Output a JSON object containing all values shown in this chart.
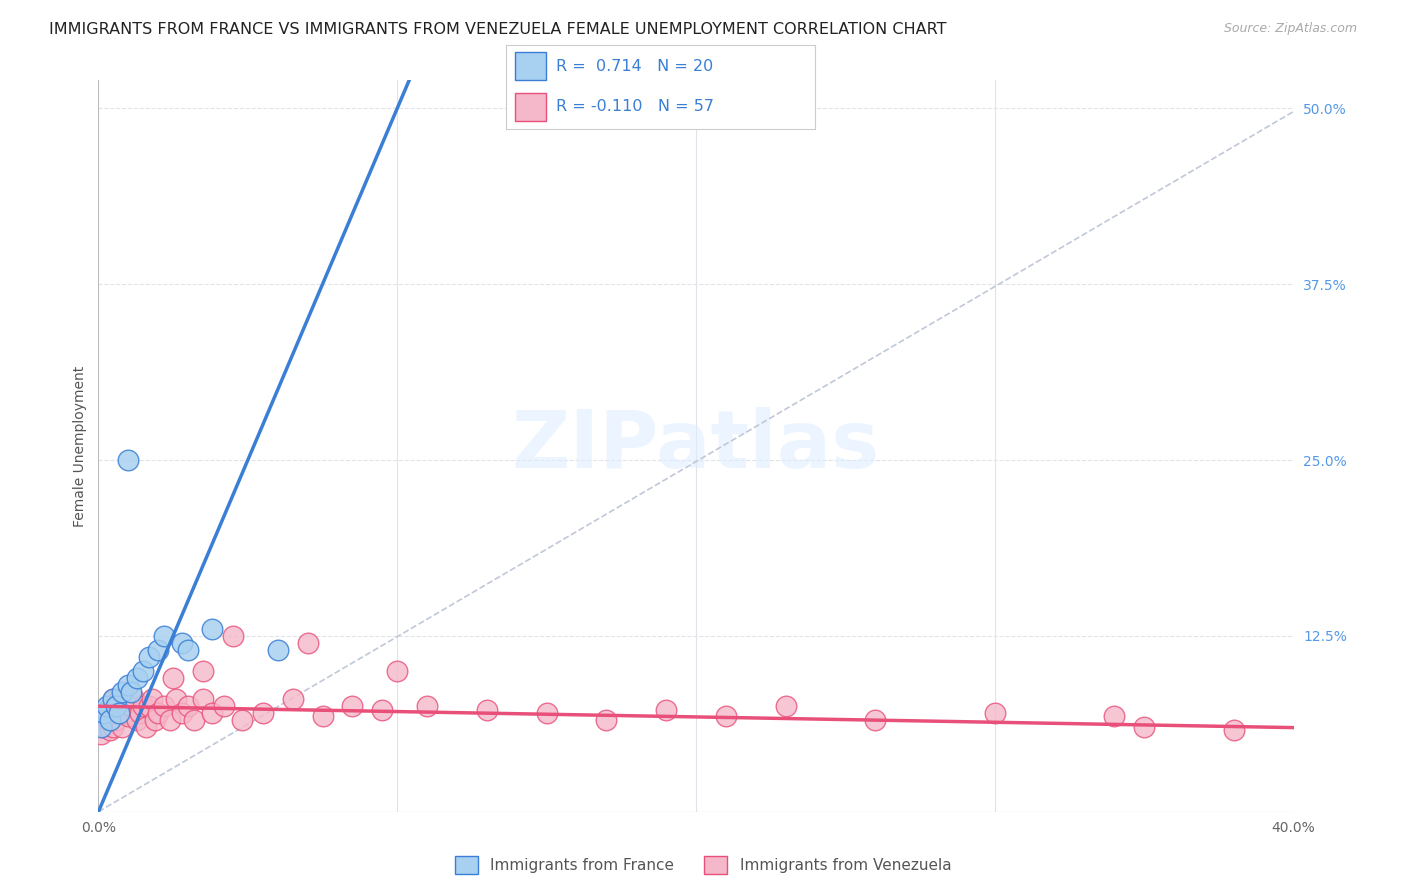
{
  "title": "IMMIGRANTS FROM FRANCE VS IMMIGRANTS FROM VENEZUELA FEMALE UNEMPLOYMENT CORRELATION CHART",
  "source": "Source: ZipAtlas.com",
  "ylabel": "Female Unemployment",
  "legend_label_france": "Immigrants from France",
  "legend_label_venezuela": "Immigrants from Venezuela",
  "r_france": 0.714,
  "n_france": 20,
  "r_venezuela": -0.11,
  "n_venezuela": 57,
  "xlim": [
    0.0,
    0.4
  ],
  "ylim": [
    0.0,
    0.52
  ],
  "xticks": [
    0.0,
    0.1,
    0.2,
    0.3,
    0.4
  ],
  "xtick_labels": [
    "0.0%",
    "",
    "",
    "",
    "40.0%"
  ],
  "ytick_right": [
    0.0,
    0.125,
    0.25,
    0.375,
    0.5
  ],
  "ytick_right_labels": [
    "",
    "12.5%",
    "25.0%",
    "37.5%",
    "50.0%"
  ],
  "color_france": "#a8d0f0",
  "color_venezuela": "#f5b8ca",
  "line_color_france": "#3a7fd5",
  "line_color_venezuela": "#e8507a",
  "diag_line_color": "#c0c8d8",
  "grid_color": "#e0e4ea",
  "france_x": [
    0.001,
    0.002,
    0.003,
    0.004,
    0.005,
    0.006,
    0.007,
    0.008,
    0.01,
    0.011,
    0.013,
    0.015,
    0.017,
    0.02,
    0.022,
    0.028,
    0.03,
    0.038,
    0.06,
    0.01
  ],
  "france_y": [
    0.06,
    0.07,
    0.075,
    0.065,
    0.08,
    0.075,
    0.07,
    0.085,
    0.09,
    0.085,
    0.095,
    0.1,
    0.11,
    0.115,
    0.125,
    0.12,
    0.115,
    0.13,
    0.115,
    0.25
  ],
  "venezuela_x": [
    0.001,
    0.002,
    0.003,
    0.003,
    0.004,
    0.004,
    0.005,
    0.005,
    0.006,
    0.007,
    0.007,
    0.008,
    0.008,
    0.009,
    0.01,
    0.011,
    0.012,
    0.013,
    0.014,
    0.015,
    0.016,
    0.017,
    0.018,
    0.019,
    0.02,
    0.022,
    0.024,
    0.026,
    0.028,
    0.03,
    0.032,
    0.035,
    0.038,
    0.042,
    0.048,
    0.055,
    0.065,
    0.075,
    0.085,
    0.095,
    0.11,
    0.13,
    0.15,
    0.17,
    0.19,
    0.21,
    0.23,
    0.26,
    0.3,
    0.34,
    0.38,
    0.025,
    0.035,
    0.045,
    0.07,
    0.1,
    0.35
  ],
  "venezuela_y": [
    0.055,
    0.06,
    0.065,
    0.07,
    0.058,
    0.075,
    0.06,
    0.08,
    0.065,
    0.07,
    0.08,
    0.06,
    0.075,
    0.07,
    0.068,
    0.075,
    0.08,
    0.065,
    0.07,
    0.075,
    0.06,
    0.075,
    0.08,
    0.065,
    0.07,
    0.075,
    0.065,
    0.08,
    0.07,
    0.075,
    0.065,
    0.08,
    0.07,
    0.075,
    0.065,
    0.07,
    0.08,
    0.068,
    0.075,
    0.072,
    0.075,
    0.072,
    0.07,
    0.065,
    0.072,
    0.068,
    0.075,
    0.065,
    0.07,
    0.068,
    0.058,
    0.095,
    0.1,
    0.125,
    0.12,
    0.1,
    0.06
  ],
  "background_color": "#ffffff",
  "title_fontsize": 11.5,
  "axis_label_fontsize": 10,
  "tick_fontsize": 10,
  "legend_fontsize": 12
}
